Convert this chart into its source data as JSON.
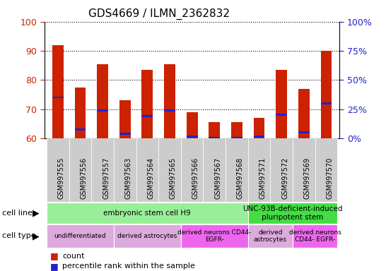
{
  "title": "GDS4669 / ILMN_2362832",
  "samples": [
    "GSM997555",
    "GSM997556",
    "GSM997557",
    "GSM997563",
    "GSM997564",
    "GSM997565",
    "GSM997566",
    "GSM997567",
    "GSM997568",
    "GSM997571",
    "GSM997572",
    "GSM997569",
    "GSM997570"
  ],
  "count_values": [
    92,
    77.5,
    85.5,
    73,
    83.5,
    85.5,
    69,
    65.5,
    65.5,
    67,
    83.5,
    77,
    90
  ],
  "percentile_values": [
    74,
    63,
    69.5,
    61.5,
    67.5,
    69.5,
    60.5,
    60,
    60,
    60.5,
    68,
    62,
    72
  ],
  "ylim": [
    60,
    100
  ],
  "y_ticks_left": [
    60,
    70,
    80,
    90,
    100
  ],
  "y_ticks_right_labels": [
    "0%",
    "25%",
    "50%",
    "75%",
    "100%"
  ],
  "y_ticks_right_positions": [
    60,
    70,
    80,
    90,
    100
  ],
  "bar_color": "#cc2200",
  "dot_color": "#2222cc",
  "bar_width": 0.5,
  "cell_line_groups": [
    {
      "label": "embryonic stem cell H9",
      "start": 0,
      "end": 9,
      "color": "#99ee99"
    },
    {
      "label": "UNC-93B-deficient-induced\npluripotent stem",
      "start": 9,
      "end": 13,
      "color": "#44dd44"
    }
  ],
  "cell_type_groups": [
    {
      "label": "undifferentiated",
      "start": 0,
      "end": 3,
      "color": "#ddaadd"
    },
    {
      "label": "derived astrocytes",
      "start": 3,
      "end": 6,
      "color": "#ddaadd"
    },
    {
      "label": "derived neurons CD44-\nEGFR-",
      "start": 6,
      "end": 9,
      "color": "#ee66ee"
    },
    {
      "label": "derived\nastrocytes",
      "start": 9,
      "end": 11,
      "color": "#ddaadd"
    },
    {
      "label": "derived neurons\nCD44- EGFR-",
      "start": 11,
      "end": 13,
      "color": "#ee66ee"
    }
  ],
  "legend_count_label": "count",
  "legend_percentile_label": "percentile rank within the sample",
  "cell_line_label": "cell line",
  "cell_type_label": "cell type"
}
